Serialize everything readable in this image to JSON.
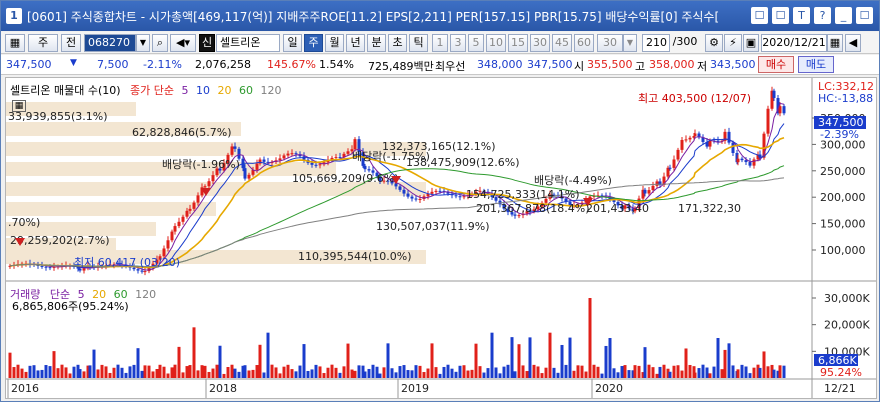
{
  "titlebar": {
    "num": "1",
    "text": "[0601] 주식종합차트 - 시가총액[469,117(억)] 지배주주ROE[11.2] EPS[2,211] PER[157.15] PBR[15.75] 배당수익률[0] 주식수[",
    "icons": [
      "☐",
      "☐",
      "T",
      "?",
      "_",
      "☐"
    ]
  },
  "toolbar": {
    "code": "068270",
    "stock_name": "셀트리온",
    "type_1": "주",
    "type_2": "전",
    "periods": [
      "일",
      "주",
      "월",
      "년",
      "분",
      "초",
      "틱"
    ],
    "selected_period": "주",
    "intervals": [
      "1",
      "3",
      "5",
      "10",
      "15",
      "30",
      "45",
      "60",
      "30"
    ],
    "count": "210",
    "count_total": "/300",
    "date": "2020/12/21",
    "s_badge": "신"
  },
  "quote": {
    "price": "347,500",
    "change": "7,500",
    "change_pct": "-2.11%",
    "volume": "2,076,258",
    "vol_ratio": "145.67%",
    "turnover": "1.54%",
    "amount": "725,489백만",
    "pref_label": "최우선",
    "ask": "348,000",
    "bid": "347,500",
    "open_label": "시",
    "open": "355,500",
    "high_label": "고",
    "high": "358,000",
    "low_label": "저",
    "low": "343,500",
    "buy_label": "매수",
    "sell_label": "매도"
  },
  "price_panel": {
    "legend_name": "셀트리온 매물대 수(10)",
    "legend_ma_label": "종가 단순",
    "ma_periods": [
      "5",
      "10",
      "20",
      "60",
      "120"
    ],
    "lc_label": "LC:332,12",
    "hc_label": "HC:-13,88",
    "last_price": "347,500",
    "last_pct": "-2.39%",
    "y_ticks": [
      "350,000",
      "300,000",
      "250,000",
      "200,000",
      "150,000",
      "100,000"
    ],
    "high_note": "최고 403,500 (12/07)",
    "low_note": "최저 60,417 (03/20)",
    "dividend_labels": [
      "배당락(-1.96%)",
      "배당락(-1.75%)",
      "배당락(-4.49%)"
    ],
    "volume_profile": [
      "33,939,855(3.1%)",
      "62,828,846(5.7%)",
      "132,373,165(12.1%)",
      "105,669,209(9.6%)",
      "138,475,909(12.6%)",
      "154,725,333(14.1%)",
      "201,367,878(18.4%)",
      "201,433,40",
      "171,322,30",
      "130,507,037(11.9%)",
      "29,259,202(2.7%)",
      "110,395,544(10.0%)",
      ".70%)"
    ]
  },
  "volume_panel": {
    "legend_name": "거래량",
    "legend_ma_label": "단순",
    "ma_periods": [
      "5",
      "20",
      "60",
      "120"
    ],
    "info": "6,865,806주(95.24%)",
    "y_ticks": [
      "30,000K",
      "20,000K",
      "10,000K"
    ],
    "last_volume": "6,866K",
    "last_pct": "95.24%"
  },
  "x_axis": {
    "labels": [
      "2016",
      "2018",
      "2019",
      "2020"
    ],
    "end_label": "12/21"
  },
  "colors": {
    "up": "#e0201a",
    "down": "#1a3ccc",
    "ma5": "#7a1fa2",
    "ma10": "#1a3ccc",
    "ma20": "#e6a800",
    "ma60": "#2e9a2e",
    "ma120": "#808080",
    "profile": "#f3e6d2"
  }
}
